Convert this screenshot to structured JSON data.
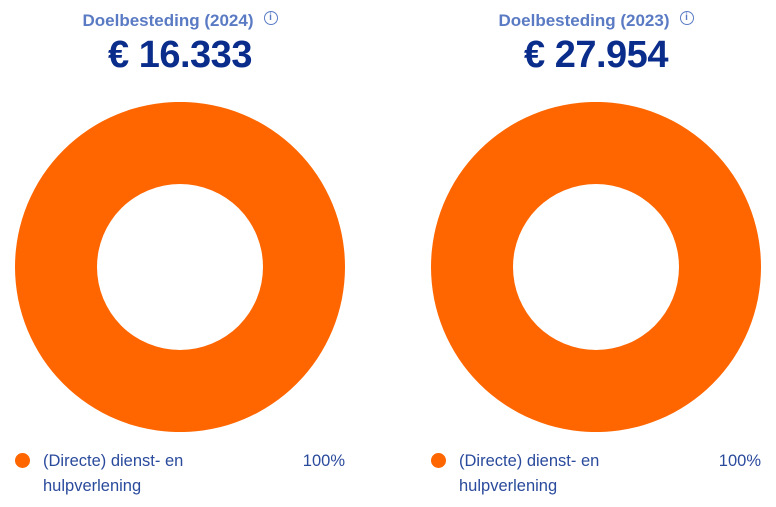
{
  "panels": [
    {
      "title": "Doelbesteding (2024)",
      "info_icon": "i",
      "amount": "€ 16.333",
      "legend": [
        {
          "label": "(Directe) dienst- en hulpverlening",
          "percent": "100%"
        }
      ]
    },
    {
      "title": "Doelbesteding (2023)",
      "info_icon": "i",
      "amount": "€ 27.954",
      "legend": [
        {
          "label": "(Directe) dienst- en hulpverlening",
          "percent": "100%"
        }
      ]
    }
  ],
  "colors": {
    "slice": "#ff6600",
    "title": "#5a7bc4",
    "amount": "#0a2d8c"
  },
  "chart_data": [
    {
      "type": "pie",
      "donut": true,
      "title": "Doelbesteding (2024)",
      "total": "€ 16.333",
      "categories": [
        "(Directe) dienst- en hulpverlening"
      ],
      "values": [
        100
      ],
      "legend": "bottom"
    },
    {
      "type": "pie",
      "donut": true,
      "title": "Doelbesteding (2023)",
      "total": "€ 27.954",
      "categories": [
        "(Directe) dienst- en hulpverlening"
      ],
      "values": [
        100
      ],
      "legend": "bottom"
    }
  ]
}
